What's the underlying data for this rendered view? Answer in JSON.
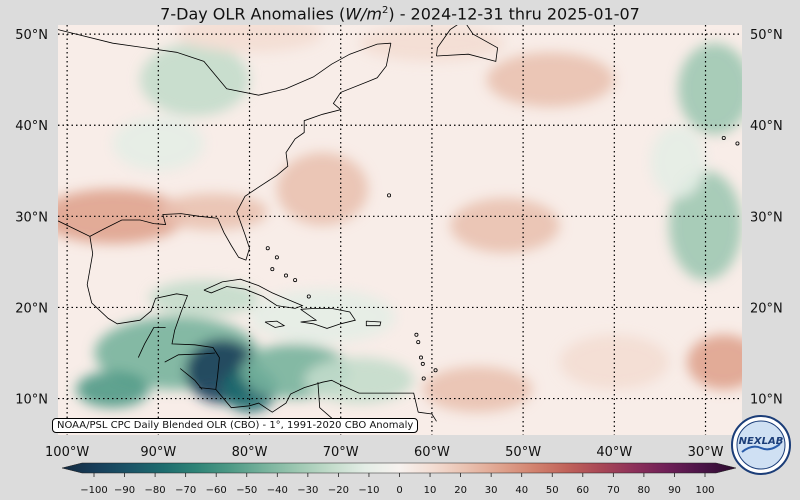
{
  "title": "7-Day OLR Anomalies (W/m²) - 2024-12-31 thru 2025-01-07",
  "title_parts": {
    "prefix": "7-Day OLR Anomalies (",
    "unit": "W/m",
    "unit_exp": "2",
    "suffix": ") - 2024-12-31 thru 2025-01-07"
  },
  "source_note": "NOAA/PSL CPC Daily Blended OLR (CBO) - 1°, 1991-2020 CBO Anomaly",
  "logo_text": "NEXLAB",
  "lat_labels": [
    "50°N",
    "40°N",
    "30°N",
    "20°N",
    "10°N"
  ],
  "lon_labels": [
    "100°W",
    "90°W",
    "80°W",
    "70°W",
    "60°W",
    "50°W",
    "40°W",
    "30°W"
  ],
  "colorbar": {
    "ticks": [
      "−100",
      "−90",
      "−80",
      "−70",
      "−60",
      "−50",
      "−40",
      "−30",
      "−20",
      "−10",
      "0",
      "10",
      "20",
      "30",
      "40",
      "50",
      "60",
      "70",
      "80",
      "90",
      "100"
    ],
    "stops": [
      "#142a40",
      "#173e5a",
      "#1b5467",
      "#1d6c6e",
      "#2f8477",
      "#4f9a86",
      "#77b29c",
      "#9ec8b2",
      "#c3dccb",
      "#e4ede6",
      "#f7f2ef",
      "#f3ddd3",
      "#e9c1b0",
      "#dfa38e",
      "#d2836f",
      "#c0625a",
      "#a84756",
      "#8c305a",
      "#6d1f57",
      "#4a1447",
      "#2b0b2e"
    ]
  },
  "map": {
    "lon_range": [
      -101,
      -26
    ],
    "lat_range": [
      6,
      51
    ],
    "lon_ticks": [
      -100,
      -90,
      -80,
      -70,
      -60,
      -50,
      -40,
      -30
    ],
    "lat_ticks": [
      50,
      40,
      30,
      20,
      10
    ],
    "anomaly_blobs": [
      {
        "lon": -88,
        "lat": 15,
        "rx": 9,
        "ry": 4,
        "value": -45
      },
      {
        "lon": -83,
        "lat": 13,
        "rx": 4,
        "ry": 3.5,
        "value": -95
      },
      {
        "lon": -80,
        "lat": 11,
        "rx": 3,
        "ry": 2.5,
        "value": -75
      },
      {
        "lon": -95,
        "lat": 11,
        "rx": 4,
        "ry": 2,
        "value": -55
      },
      {
        "lon": -75,
        "lat": 13,
        "rx": 6,
        "ry": 3,
        "value": -40
      },
      {
        "lon": -68,
        "lat": 12,
        "rx": 6,
        "ry": 2.5,
        "value": -25
      },
      {
        "lon": -72,
        "lat": 19,
        "rx": 8,
        "ry": 3,
        "value": -15
      },
      {
        "lon": -85,
        "lat": 21,
        "rx": 6,
        "ry": 2,
        "value": -20
      },
      {
        "lon": -30,
        "lat": 29,
        "rx": 4,
        "ry": 6,
        "value": -35
      },
      {
        "lon": -29,
        "lat": 44,
        "rx": 4,
        "ry": 5,
        "value": -30
      },
      {
        "lon": -33,
        "lat": 36,
        "rx": 3,
        "ry": 4,
        "value": -15
      },
      {
        "lon": -86,
        "lat": 45,
        "rx": 6,
        "ry": 4,
        "value": -20
      },
      {
        "lon": -90,
        "lat": 38,
        "rx": 5,
        "ry": 3,
        "value": -12
      },
      {
        "lon": -95,
        "lat": 30,
        "rx": 8,
        "ry": 3,
        "value": 25
      },
      {
        "lon": -84,
        "lat": 30.5,
        "rx": 6,
        "ry": 2,
        "value": 22
      },
      {
        "lon": -72,
        "lat": 33,
        "rx": 5,
        "ry": 4,
        "value": 20
      },
      {
        "lon": -52,
        "lat": 29,
        "rx": 6,
        "ry": 3,
        "value": 18
      },
      {
        "lon": -47,
        "lat": 45,
        "rx": 7,
        "ry": 3,
        "value": 20
      },
      {
        "lon": -28,
        "lat": 14,
        "rx": 4,
        "ry": 3,
        "value": 30
      },
      {
        "lon": -40,
        "lat": 14,
        "rx": 6,
        "ry": 3,
        "value": 12
      },
      {
        "lon": -55,
        "lat": 11,
        "rx": 6,
        "ry": 2.5,
        "value": 15
      },
      {
        "lon": -60,
        "lat": 49,
        "rx": 8,
        "ry": 2,
        "value": 10
      },
      {
        "lon": -80,
        "lat": 50,
        "rx": 8,
        "ry": 2,
        "value": 12
      }
    ]
  }
}
